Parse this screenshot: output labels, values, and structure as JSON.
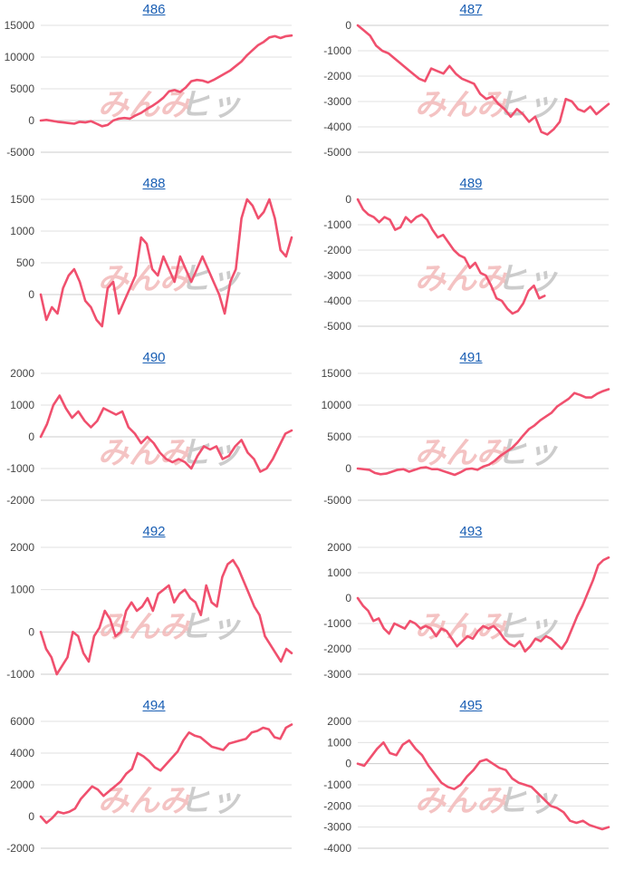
{
  "colors": {
    "line": "#f0506e",
    "grid": "#e0e0e0",
    "axis": "#cccccc",
    "watermark_left": "#f2b8b8",
    "watermark_right": "#c7c7c7"
  },
  "watermark": {
    "left": "みんみ",
    "right": "ヒッ"
  },
  "chart_data": [
    {
      "type": "line",
      "title": "486",
      "ylim": [
        -5000,
        15000
      ],
      "yticks": [
        -5000,
        0,
        5000,
        10000,
        15000
      ],
      "values": [
        0,
        100,
        -50,
        -200,
        -300,
        -400,
        -500,
        -200,
        -300,
        -100,
        -500,
        -900,
        -700,
        0,
        300,
        400,
        300,
        800,
        1200,
        1800,
        2300,
        2900,
        3600,
        4600,
        4800,
        4500,
        5200,
        6200,
        6400,
        6300,
        6000,
        6400,
        6900,
        7400,
        7900,
        8600,
        9300,
        10300,
        11100,
        11900,
        12400,
        13100,
        13300,
        13000,
        13300,
        13400
      ]
    },
    {
      "type": "line",
      "title": "487",
      "ylim": [
        -5000,
        0
      ],
      "yticks": [
        -5000,
        -4000,
        -3000,
        -2000,
        -1000,
        0
      ],
      "values": [
        0,
        -200,
        -400,
        -800,
        -1000,
        -1100,
        -1300,
        -1500,
        -1700,
        -1900,
        -2100,
        -2200,
        -1700,
        -1800,
        -1900,
        -1600,
        -1900,
        -2100,
        -2200,
        -2300,
        -2700,
        -2900,
        -2800,
        -3100,
        -3300,
        -3600,
        -3300,
        -3500,
        -3800,
        -3600,
        -4200,
        -4300,
        -4100,
        -3800,
        -2900,
        -3000,
        -3300,
        -3400,
        -3200,
        -3500,
        -3300,
        -3100
      ]
    },
    {
      "type": "line",
      "title": "488",
      "ylim": [
        -500,
        1500
      ],
      "yticks": [
        0,
        500,
        1000,
        1500
      ],
      "values": [
        0,
        -400,
        -200,
        -300,
        100,
        300,
        400,
        200,
        -100,
        -200,
        -400,
        -500,
        100,
        200,
        -300,
        -100,
        100,
        300,
        900,
        800,
        400,
        300,
        600,
        400,
        200,
        600,
        400,
        200,
        400,
        600,
        400,
        200,
        0,
        -300,
        200,
        400,
        1200,
        1500,
        1400,
        1200,
        1300,
        1500,
        1200,
        700,
        600,
        900
      ]
    },
    {
      "type": "line",
      "title": "489",
      "ylim": [
        -5000,
        0
      ],
      "yticks": [
        -5000,
        -4000,
        -3000,
        -2000,
        -1000,
        0
      ],
      "values": [
        0,
        -400,
        -600,
        -700,
        -900,
        -700,
        -800,
        -1200,
        -1100,
        -700,
        -900,
        -700,
        -600,
        -800,
        -1200,
        -1500,
        -1400,
        -1700,
        -2000,
        -2200,
        -2300,
        -2700,
        -2500,
        -2900,
        -3000,
        -3400,
        -3900,
        -4000,
        -4300,
        -4500,
        -4400,
        -4100,
        -3600,
        -3400,
        -3900,
        -3800
      ]
    },
    {
      "type": "line",
      "title": "490",
      "ylim": [
        -2000,
        2000
      ],
      "yticks": [
        -2000,
        -1000,
        0,
        1000,
        2000
      ],
      "values": [
        0,
        400,
        1000,
        1300,
        900,
        600,
        800,
        500,
        300,
        500,
        900,
        800,
        700,
        800,
        300,
        100,
        -200,
        0,
        -200,
        -500,
        -700,
        -800,
        -700,
        -800,
        -1000,
        -600,
        -300,
        -400,
        -300,
        -700,
        -600,
        -300,
        -100,
        -500,
        -700,
        -1100,
        -1000,
        -700,
        -300,
        100,
        200
      ]
    },
    {
      "type": "line",
      "title": "491",
      "ylim": [
        -5000,
        15000
      ],
      "yticks": [
        -5000,
        0,
        5000,
        10000,
        15000
      ],
      "values": [
        0,
        -100,
        -200,
        -700,
        -900,
        -800,
        -500,
        -200,
        -100,
        -500,
        -200,
        100,
        200,
        -100,
        -100,
        -400,
        -700,
        -1000,
        -600,
        -100,
        0,
        -200,
        300,
        600,
        1200,
        2000,
        2600,
        3200,
        4100,
        5200,
        6200,
        6800,
        7600,
        8200,
        8800,
        9800,
        10400,
        11000,
        11900,
        11600,
        11200,
        11200,
        11800,
        12200,
        12500
      ]
    },
    {
      "type": "line",
      "title": "492",
      "ylim": [
        -1000,
        2000
      ],
      "yticks": [
        -1000,
        0,
        1000,
        2000
      ],
      "values": [
        0,
        -400,
        -600,
        -1000,
        -800,
        -600,
        0,
        -100,
        -500,
        -700,
        -100,
        100,
        500,
        300,
        -100,
        0,
        500,
        700,
        500,
        600,
        800,
        500,
        900,
        1000,
        1100,
        700,
        900,
        1000,
        800,
        700,
        400,
        1100,
        700,
        600,
        1300,
        1600,
        1700,
        1500,
        1200,
        900,
        600,
        400,
        -100,
        -300,
        -500,
        -700,
        -400,
        -500
      ]
    },
    {
      "type": "line",
      "title": "493",
      "ylim": [
        -3000,
        2000
      ],
      "yticks": [
        -3000,
        -2000,
        -1000,
        0,
        1000,
        2000
      ],
      "values": [
        0,
        -300,
        -500,
        -900,
        -800,
        -1200,
        -1400,
        -1000,
        -1100,
        -1200,
        -900,
        -1000,
        -1200,
        -1100,
        -1200,
        -1500,
        -1200,
        -1300,
        -1600,
        -1900,
        -1700,
        -1500,
        -1600,
        -1300,
        -1100,
        -1200,
        -1100,
        -1300,
        -1600,
        -1800,
        -1900,
        -1700,
        -2100,
        -1900,
        -1600,
        -1700,
        -1500,
        -1600,
        -1800,
        -2000,
        -1700,
        -1200,
        -700,
        -300,
        200,
        700,
        1300,
        1500,
        1600
      ]
    },
    {
      "type": "line",
      "title": "494",
      "ylim": [
        -2000,
        6000
      ],
      "yticks": [
        -2000,
        0,
        2000,
        4000,
        6000
      ],
      "values": [
        0,
        -400,
        -100,
        300,
        200,
        300,
        500,
        1100,
        1500,
        1900,
        1700,
        1300,
        1600,
        1900,
        2200,
        2700,
        3000,
        4000,
        3800,
        3500,
        3100,
        2900,
        3300,
        3700,
        4100,
        4800,
        5300,
        5100,
        5000,
        4700,
        4400,
        4300,
        4200,
        4600,
        4700,
        4800,
        4900,
        5300,
        5400,
        5600,
        5500,
        5000,
        4900,
        5600,
        5800
      ]
    },
    {
      "type": "line",
      "title": "495",
      "ylim": [
        -4000,
        2000
      ],
      "yticks": [
        -4000,
        -3000,
        -2000,
        -1000,
        0,
        1000,
        2000
      ],
      "values": [
        0,
        -100,
        300,
        700,
        1000,
        500,
        400,
        900,
        1100,
        700,
        400,
        -100,
        -500,
        -900,
        -1100,
        -1200,
        -1000,
        -600,
        -300,
        100,
        200,
        0,
        -200,
        -300,
        -700,
        -900,
        -1000,
        -1100,
        -1400,
        -1700,
        -2000,
        -2100,
        -2300,
        -2700,
        -2800,
        -2700,
        -2900,
        -3000,
        -3100,
        -3000
      ]
    }
  ]
}
